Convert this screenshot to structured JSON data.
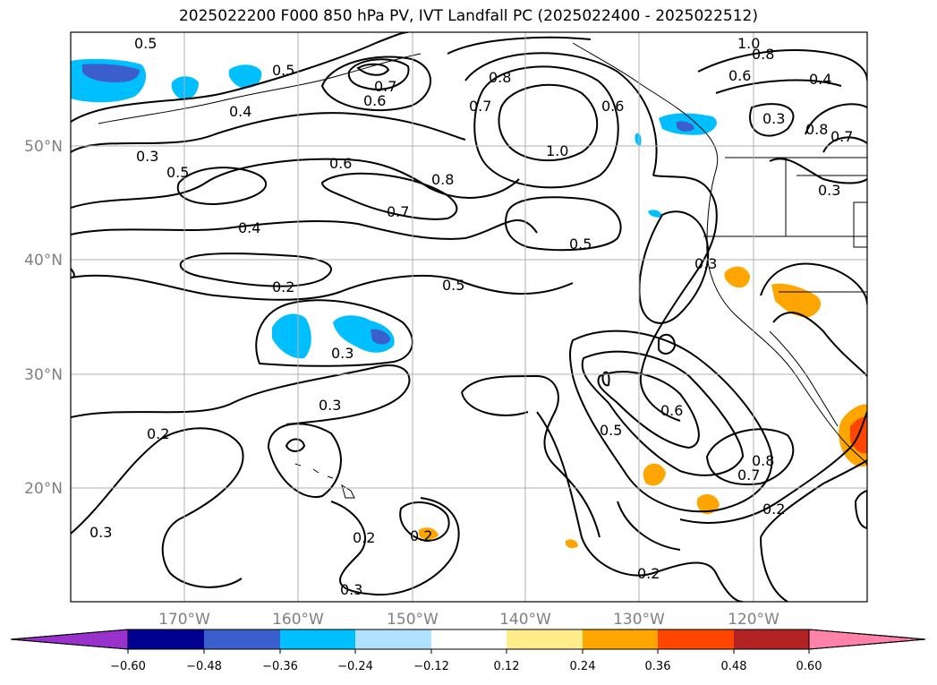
{
  "title": "2025022200 F000 850 hPa PV, IVT Landfall PC (2025022400 - 2025022512)",
  "map": {
    "lat_labels": [
      "50°N",
      "40°N",
      "30°N",
      "20°N"
    ],
    "lon_labels": [
      "170°W",
      "160°W",
      "150°W",
      "140°W",
      "130°W",
      "120°W"
    ],
    "gridline_color": "#b0b0b0",
    "label_color": "#808080"
  },
  "contour_labels": [
    "0.5",
    "0.5",
    "0.4",
    "0.3",
    "0.5",
    "0.7",
    "0.6",
    "0.6",
    "0.8",
    "1.0",
    "0.8",
    "0.7",
    "0.6",
    "0.8",
    "1.0",
    "0.6",
    "0.4",
    "0.3",
    "0.8",
    "0.7",
    "0.4",
    "0.7",
    "0.5",
    "0.2",
    "0.5",
    "0.3",
    "0.3",
    "0.3",
    "0.2",
    "0.6",
    "0.5",
    "0.8",
    "0.7",
    "0.2",
    "0.3",
    "0.2",
    "0.2",
    "0.2",
    "0.3",
    "0.3"
  ],
  "colorbar": {
    "ticks": [
      "−0.60",
      "−0.48",
      "−0.36",
      "−0.24",
      "−0.12",
      "0.12",
      "0.24",
      "0.36",
      "0.48",
      "0.60"
    ],
    "colors": [
      "#9932cc",
      "#000090",
      "#3a5fcd",
      "#00bfff",
      "#b0e2ff",
      "#ffffff",
      "#ffec8b",
      "#ffa500",
      "#ff4500",
      "#b22222",
      "#ff82ab"
    ]
  }
}
